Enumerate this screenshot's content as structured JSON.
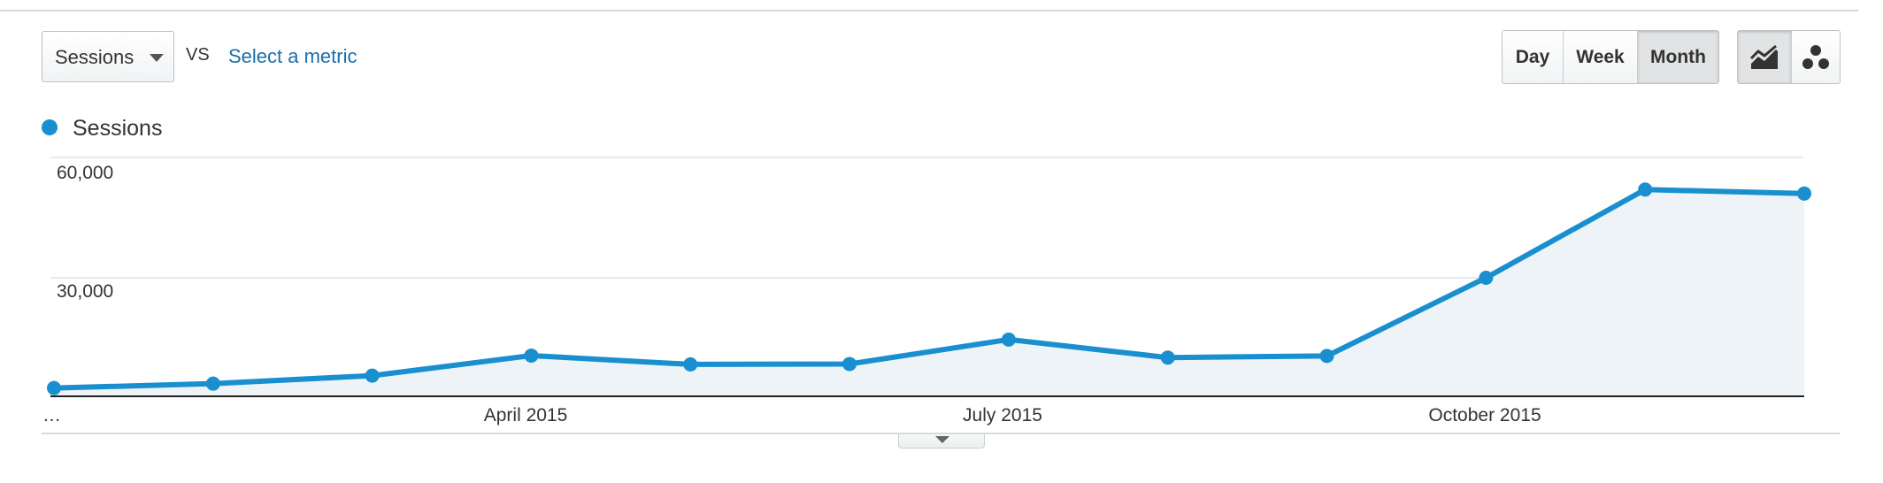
{
  "controls": {
    "metric_select": "Sessions",
    "vs_label": "VS",
    "compare_link": "Select a metric",
    "granularity": [
      "Day",
      "Week",
      "Month"
    ],
    "active_granularity": "Month",
    "chart_types": [
      "line-chart-icon",
      "motion-chart-icon"
    ],
    "active_chart_type": "line-chart-icon"
  },
  "colors": {
    "series": "#1a8fcf",
    "area_fill": "#edf3f6",
    "gridline": "#dde3e7",
    "axis": "#222222"
  },
  "chart_data": {
    "type": "area",
    "title": "",
    "xlabel": "",
    "ylabel": "",
    "legend": "top-left",
    "grid": true,
    "ylim": [
      0,
      60000
    ],
    "y_ticks": [
      "60,000",
      "30,000"
    ],
    "x_tick_labels": [
      "…",
      "April 2015",
      "July 2015",
      "October 2015"
    ],
    "x": [
      "2015-01",
      "2015-02",
      "2015-03",
      "2015-04",
      "2015-05",
      "2015-06",
      "2015-07",
      "2015-08",
      "2015-09",
      "2015-10",
      "2015-11",
      "2015-12"
    ],
    "series": [
      {
        "name": "Sessions",
        "values": [
          2500,
          3600,
          5600,
          10600,
          8400,
          8500,
          14600,
          10100,
          10500,
          30000,
          52000,
          51000
        ]
      }
    ]
  }
}
